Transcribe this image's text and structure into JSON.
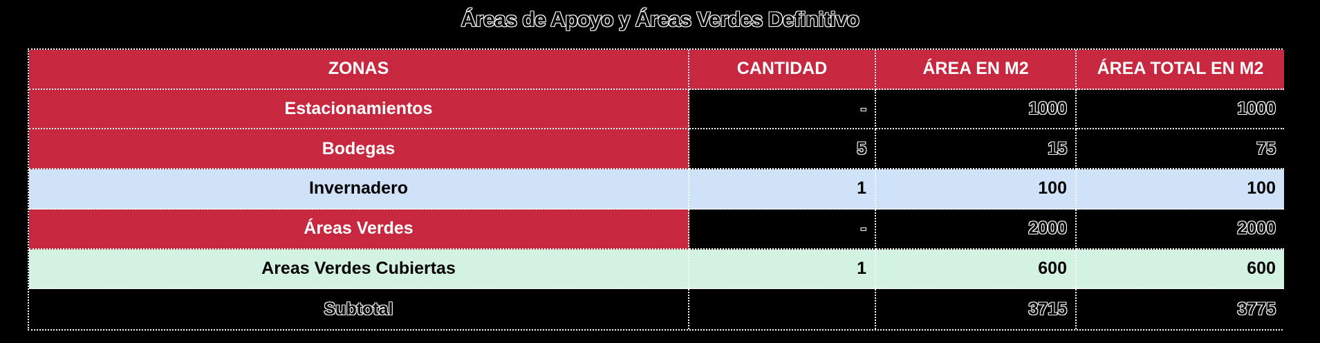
{
  "title": "Áreas de Apoyo y Áreas Verdes Definitivo",
  "table": {
    "headers": [
      "ZONAS",
      "CANTIDAD",
      "ÁREA EN M2",
      "ÁREA TOTAL EN M2"
    ],
    "rows": [
      {
        "zona": "Estacionamientos",
        "cantidad": "-",
        "area": "1000",
        "area_total": "1000",
        "color": "#c8283f"
      },
      {
        "zona": "Bodegas",
        "cantidad": "5",
        "area": "15",
        "area_total": "75",
        "color": "#c8283f"
      },
      {
        "zona": "Invernadero",
        "cantidad": "1",
        "area": "100",
        "area_total": "100",
        "color": "#cfe2f7"
      },
      {
        "zona": "Áreas Verdes",
        "cantidad": "-",
        "area": "2000",
        "area_total": "2000",
        "color": "#c8283f"
      },
      {
        "zona": "Areas Verdes Cubiertas",
        "cantidad": "1",
        "area": "600",
        "area_total": "600",
        "color": "#d3f2e1"
      }
    ],
    "subtotal": {
      "label": "Subtotal",
      "cantidad": "",
      "area": "3715",
      "area_total": "3775"
    }
  },
  "colors": {
    "header": "#c8283f",
    "red_zone": "#c8283f",
    "blue_zone": "#cfe2f7",
    "green_zone": "#d3f2e1",
    "background": "#000000"
  }
}
